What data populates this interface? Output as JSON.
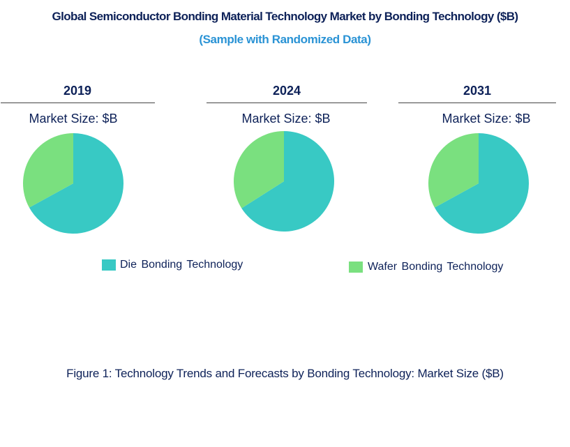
{
  "title": "Global Semiconductor Bonding Material Technology Market by Bonding Technology ($B)",
  "subtitle": "(Sample with Randomized Data)",
  "caption": "Figure 1: Technology Trends and Forecasts by Bonding Technology: Market Size ($B)",
  "colors": {
    "die": "#38c9c4",
    "wafer": "#7ae07f"
  },
  "chart_data": [
    {
      "type": "pie",
      "title": "2019",
      "subtitle": "Market Size: $B",
      "categories": [
        "Die Bonding Technology",
        "Wafer Bonding Technology"
      ],
      "values": [
        67,
        33
      ]
    },
    {
      "type": "pie",
      "title": "2024",
      "subtitle": "Market Size: $B",
      "categories": [
        "Die Bonding Technology",
        "Wafer Bonding Technology"
      ],
      "values": [
        66,
        34
      ]
    },
    {
      "type": "pie",
      "title": "2031",
      "subtitle": "Market Size: $B",
      "categories": [
        "Die Bonding Technology",
        "Wafer Bonding Technology"
      ],
      "values": [
        67,
        33
      ]
    }
  ],
  "legend": [
    "Die Bonding Technology",
    "Wafer Bonding Technology"
  ]
}
